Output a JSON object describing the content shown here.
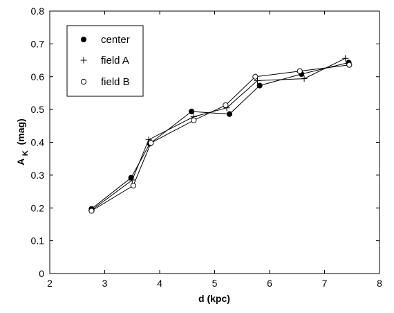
{
  "chart_data": {
    "type": "line",
    "title": "",
    "xlabel": "d (kpc)",
    "ylabel_main": "A",
    "ylabel_sub": "K",
    "ylabel_unit": "(mag)",
    "xlim": [
      2,
      8
    ],
    "ylim": [
      0,
      0.8
    ],
    "xticks": [
      "2",
      "3",
      "4",
      "5",
      "6",
      "7",
      "8"
    ],
    "yticks": [
      "0",
      "0.1",
      "0.2",
      "0.3",
      "0.4",
      "0.5",
      "0.6",
      "0.7",
      "0.8"
    ],
    "xtick_values": [
      2,
      3,
      4,
      5,
      6,
      7,
      8
    ],
    "ytick_values": [
      0,
      0.1,
      0.2,
      0.3,
      0.4,
      0.5,
      0.6,
      0.7,
      0.8
    ],
    "grid": false,
    "legend_position": "top-left",
    "series": [
      {
        "name": "center",
        "marker": "filled-circle",
        "color": "#000000",
        "points": [
          {
            "x": 2.76,
            "y": 0.197
          },
          {
            "x": 3.48,
            "y": 0.292
          },
          {
            "x": 3.82,
            "y": 0.396
          },
          {
            "x": 4.58,
            "y": 0.494
          },
          {
            "x": 5.27,
            "y": 0.486
          },
          {
            "x": 5.82,
            "y": 0.573
          },
          {
            "x": 6.58,
            "y": 0.608
          },
          {
            "x": 7.44,
            "y": 0.643
          }
        ]
      },
      {
        "name": "field A",
        "marker": "plus",
        "color": "#000000",
        "points": [
          {
            "x": 2.76,
            "y": 0.193
          },
          {
            "x": 3.5,
            "y": 0.285
          },
          {
            "x": 3.8,
            "y": 0.408
          },
          {
            "x": 4.62,
            "y": 0.478
          },
          {
            "x": 5.22,
            "y": 0.505
          },
          {
            "x": 5.78,
            "y": 0.588
          },
          {
            "x": 6.63,
            "y": 0.594
          },
          {
            "x": 7.38,
            "y": 0.656
          }
        ]
      },
      {
        "name": "field B",
        "marker": "open-circle",
        "color": "#000000",
        "points": [
          {
            "x": 2.76,
            "y": 0.191
          },
          {
            "x": 3.52,
            "y": 0.268
          },
          {
            "x": 3.84,
            "y": 0.398
          },
          {
            "x": 4.62,
            "y": 0.467
          },
          {
            "x": 5.2,
            "y": 0.513
          },
          {
            "x": 5.74,
            "y": 0.6
          },
          {
            "x": 6.55,
            "y": 0.617
          },
          {
            "x": 7.45,
            "y": 0.636
          }
        ]
      }
    ]
  }
}
